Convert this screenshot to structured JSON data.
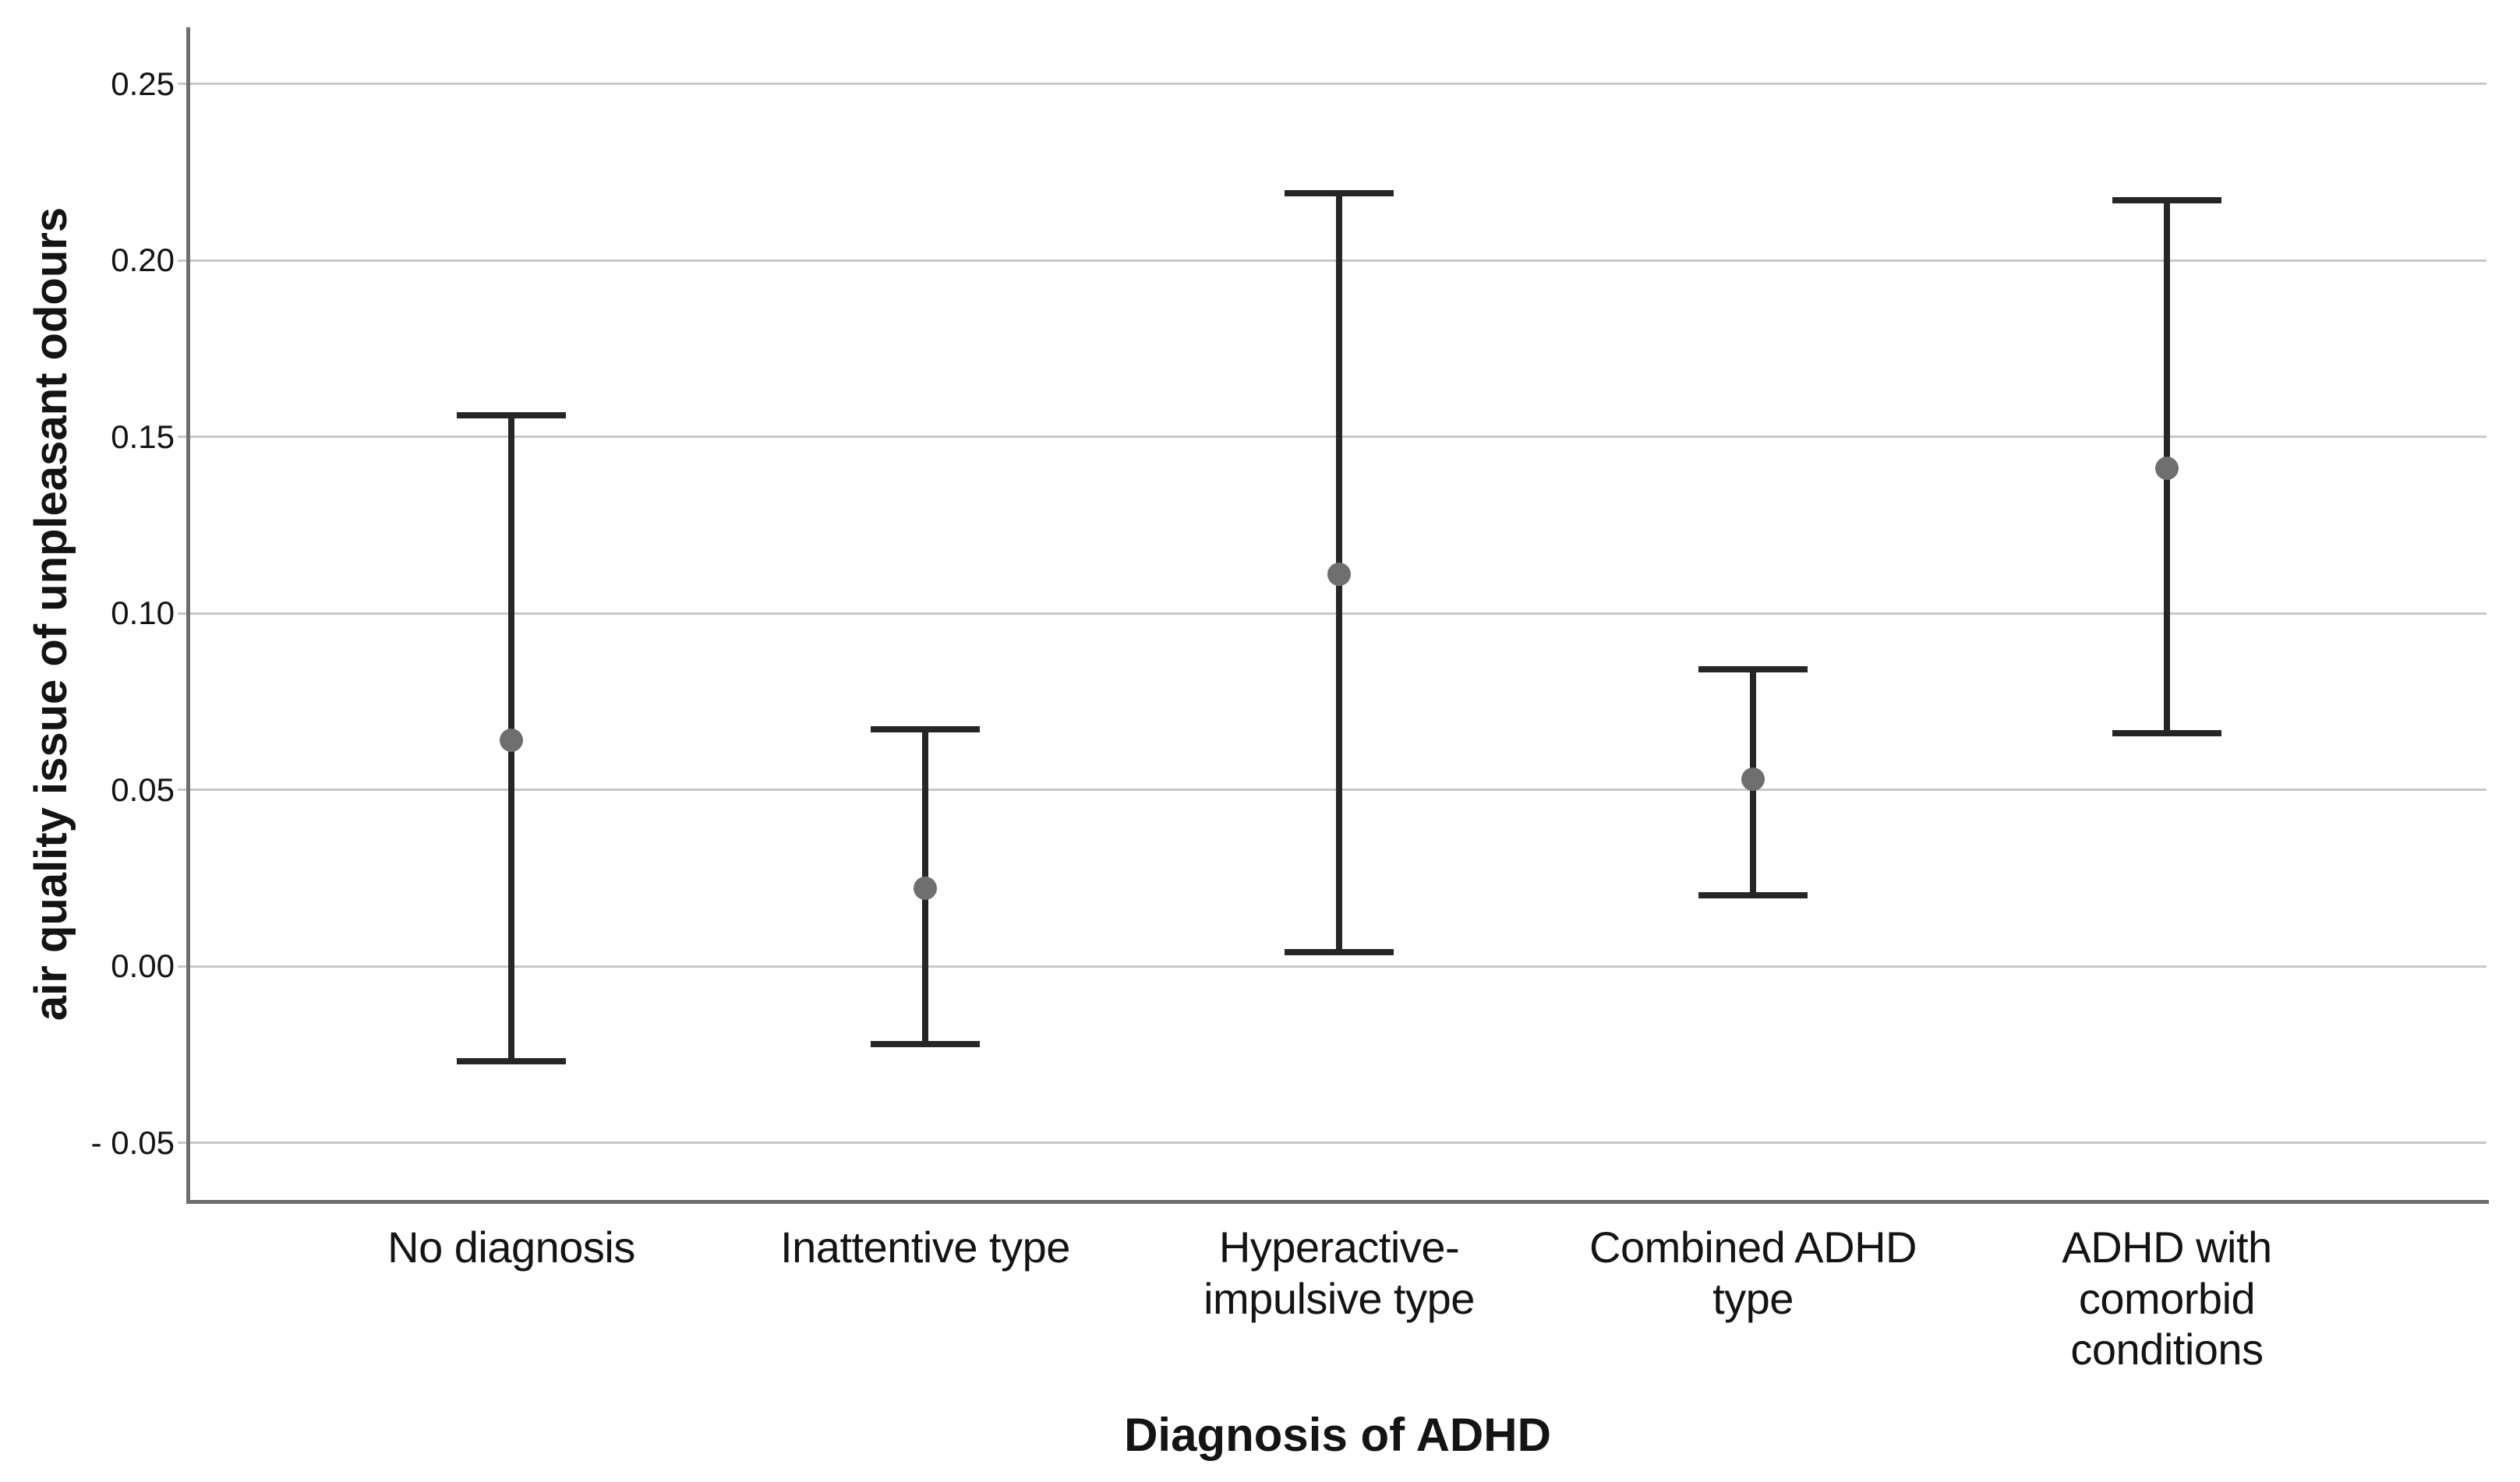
{
  "chart_data": {
    "type": "errorbar",
    "title": "",
    "xlabel": "Diagnosis of ADHD",
    "ylabel": "air quality issue of unpleasant odours",
    "categories": [
      "No diagnosis",
      "Inattentive type",
      "Hyperactive-impulsive type",
      "Combined ADHD type",
      "ADHD with comorbid conditions"
    ],
    "category_label_lines": [
      [
        "No diagnosis"
      ],
      [
        "Inattentive type"
      ],
      [
        "Hyperactive-",
        "impulsive type"
      ],
      [
        "Combined ADHD",
        "type"
      ],
      [
        "ADHD with",
        "comorbid",
        "conditions"
      ]
    ],
    "series": [
      {
        "name": "mean",
        "values": [
          0.064,
          0.022,
          0.111,
          0.053,
          0.141
        ]
      }
    ],
    "ci_low": [
      -0.027,
      -0.022,
      0.004,
      0.02,
      0.066
    ],
    "ci_high": [
      0.156,
      0.067,
      0.219,
      0.084,
      0.217
    ],
    "yticks": [
      0.25,
      0.2,
      0.15,
      0.1,
      0.05,
      0.0,
      -0.05
    ],
    "ytick_labels": [
      "0.25",
      "0.20",
      "0.15",
      "0.10",
      "0.05",
      "0.00",
      "- 0.05"
    ],
    "ylim": [
      -0.067,
      0.266
    ],
    "grid": "horizontal",
    "legend": "none",
    "marker": "circle",
    "marker_color": "#6f6f6f",
    "errorbar_color": "#262626",
    "gridline_color": "#c8c8c8",
    "axis_color": "#6e6e6e",
    "text_color": "#141414"
  }
}
